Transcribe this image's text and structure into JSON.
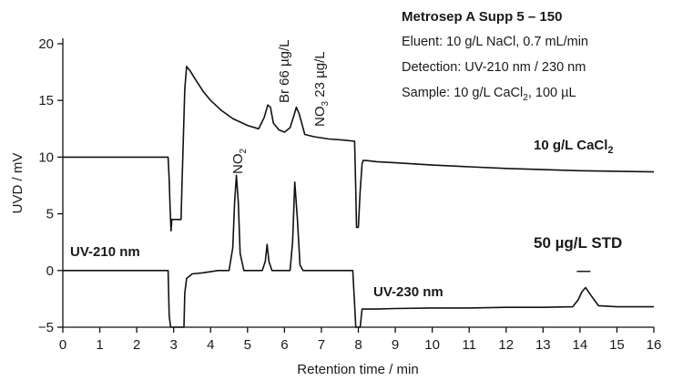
{
  "chart_data": {
    "type": "line",
    "title": "",
    "xlabel": "Retention time / min",
    "ylabel": "UVD / mV",
    "xlim": [
      0,
      16
    ],
    "ylim": [
      -5,
      20
    ],
    "x_ticks": [
      "0",
      "1",
      "2",
      "3",
      "4",
      "5",
      "6",
      "7",
      "8",
      "9",
      "10",
      "11",
      "12",
      "13",
      "14",
      "15",
      "16"
    ],
    "y_ticks": [
      "−5",
      "0",
      "5",
      "10",
      "15",
      "20"
    ],
    "info_box": {
      "title": "Metrosep A Supp 5 – 150",
      "eluent": "Eluent: 10 g/L NaCl, 0.7 mL/min",
      "detection": "Detection: UV-210 nm / 230 nm",
      "sample_prefix": "Sample: 10 g/L CaCl",
      "sample_sub": "2",
      "sample_suffix": ", 100 µL"
    },
    "trace_labels": {
      "cacl2_prefix": "10 g/L CaCl",
      "cacl2_sub": "2",
      "std": "50 µg/L STD",
      "uv210": "UV-210 nm",
      "uv230": "UV-230 nm"
    },
    "peak_labels": {
      "no2_prefix": "NO",
      "no2_sub": "2",
      "br": "Br 66 µg/L",
      "no3_prefix": "NO",
      "no3_sub": "3",
      "no3_suffix": " 23 µg/L"
    },
    "series": [
      {
        "name": "10 g/L CaCl2",
        "x": [
          0,
          2.85,
          2.88,
          2.9,
          2.93,
          2.95,
          3.2,
          3.23,
          3.3,
          3.35,
          3.45,
          3.6,
          3.8,
          4.0,
          4.3,
          4.6,
          5.0,
          5.3,
          5.45,
          5.55,
          5.62,
          5.7,
          5.85,
          6.0,
          6.15,
          6.25,
          6.32,
          6.4,
          6.55,
          6.8,
          7.2,
          7.6,
          7.9,
          7.93,
          7.95,
          8.0,
          8.05,
          8.1,
          8.13,
          8.2,
          8.5,
          9.0,
          10,
          11,
          12,
          13,
          14,
          15,
          16
        ],
        "y": [
          10,
          10,
          8,
          6,
          3.5,
          4.5,
          4.5,
          8,
          16,
          18,
          17.6,
          16.8,
          15.8,
          15.0,
          14.1,
          13.4,
          12.8,
          12.5,
          13.5,
          14.6,
          14.4,
          13.0,
          12.4,
          12.2,
          12.6,
          13.6,
          14.4,
          13.8,
          12.0,
          11.8,
          11.6,
          11.5,
          11.4,
          7,
          3.8,
          3.8,
          7,
          9.4,
          9.7,
          9.7,
          9.6,
          9.5,
          9.3,
          9.15,
          9.0,
          8.9,
          8.8,
          8.75,
          8.7
        ]
      },
      {
        "name": "50 µg/L STD (UV-210 nm / UV-230 nm)",
        "x": [
          0,
          2.85,
          2.88,
          2.92,
          3.28,
          3.3,
          3.35,
          3.5,
          3.8,
          4.2,
          4.5,
          4.6,
          4.65,
          4.7,
          4.75,
          4.8,
          4.9,
          5.4,
          5.48,
          5.53,
          5.58,
          5.66,
          6.15,
          6.22,
          6.28,
          6.35,
          6.42,
          6.5,
          7.85,
          7.9,
          7.93,
          8.05,
          8.1,
          8.5,
          9.0,
          10,
          11,
          12,
          13,
          13.8,
          13.95,
          14.05,
          14.15,
          14.3,
          14.5,
          15,
          16
        ],
        "y": [
          0,
          0,
          -4,
          -5,
          -5,
          -2,
          -0.7,
          -0.3,
          -0.2,
          0,
          0,
          2,
          6,
          8.4,
          6,
          1.5,
          0,
          0,
          0.8,
          2.3,
          0.8,
          0,
          0,
          2.5,
          7.8,
          4.5,
          0.5,
          0,
          0,
          -3,
          -5,
          -5,
          -3.4,
          -3.4,
          -3.35,
          -3.3,
          -3.3,
          -3.25,
          -3.25,
          -3.2,
          -2.6,
          -1.9,
          -1.5,
          -2.2,
          -3.1,
          -3.2,
          -3.2
        ]
      }
    ],
    "annotations": [
      {
        "text": "—",
        "x": 14.1,
        "y": 0
      }
    ],
    "grid": false,
    "legend": "none"
  }
}
